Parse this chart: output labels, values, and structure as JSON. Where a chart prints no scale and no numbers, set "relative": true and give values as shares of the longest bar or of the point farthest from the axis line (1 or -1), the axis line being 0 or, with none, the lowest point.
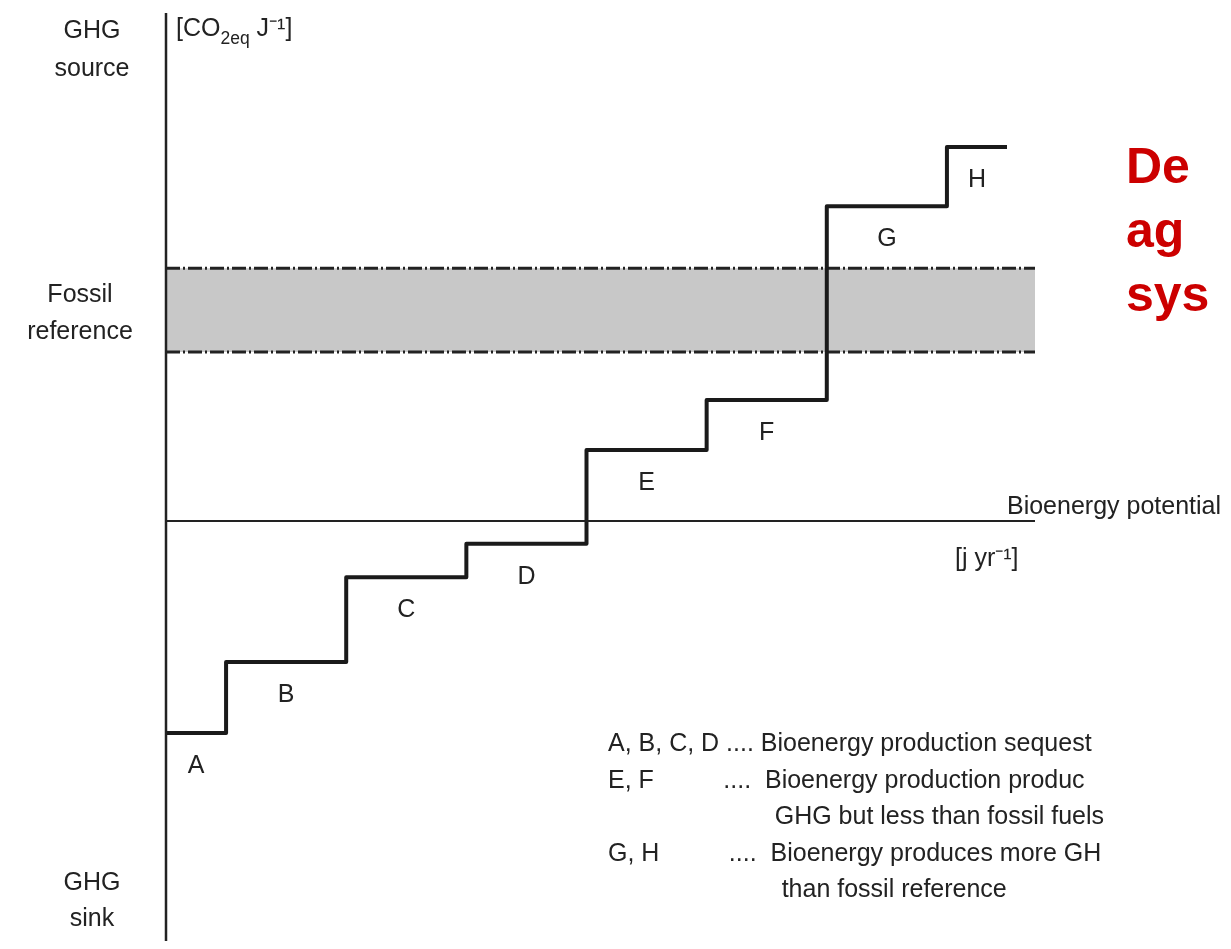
{
  "chart_data": {
    "type": "step",
    "relative": true,
    "categories": [
      "A",
      "B",
      "C",
      "D",
      "E",
      "F",
      "G",
      "H"
    ],
    "series": [
      {
        "color": "#1a1a1a",
        "values": [
          -0.567,
          -0.377,
          -0.15,
          -0.061,
          0.19,
          0.324,
          0.842,
          1
        ]
      }
    ],
    "ylabel": "[CO$_{2eq}$ J⁻¹]",
    "xlabel": "Bioenergy potential",
    "ref_lines": [
      {
        "axis": "y",
        "value": 0.676,
        "color": "#222222",
        "line_style": "dashed"
      },
      {
        "axis": "y",
        "value": 0.452,
        "color": "#222222",
        "line_style": "dashed"
      }
    ],
    "bands": [
      {
        "axis": "y",
        "from": 0.452,
        "to": 0.676,
        "label": "Fossil\nreference",
        "color": "#c8c8c8"
      }
    ],
    "annotations": [
      "GHG\nsource",
      "GHG\nsink",
      "[j yr⁻¹]",
      "De\nag\nsys",
      "A, B, C, D .... Bioenergy production sequest",
      "E, F          ....  Bioenergy production produc\n                        GHG but less than fossil fuels",
      "G, H          ....  Bioenergy produces more GH\n                         than fossil reference"
    ]
  }
}
